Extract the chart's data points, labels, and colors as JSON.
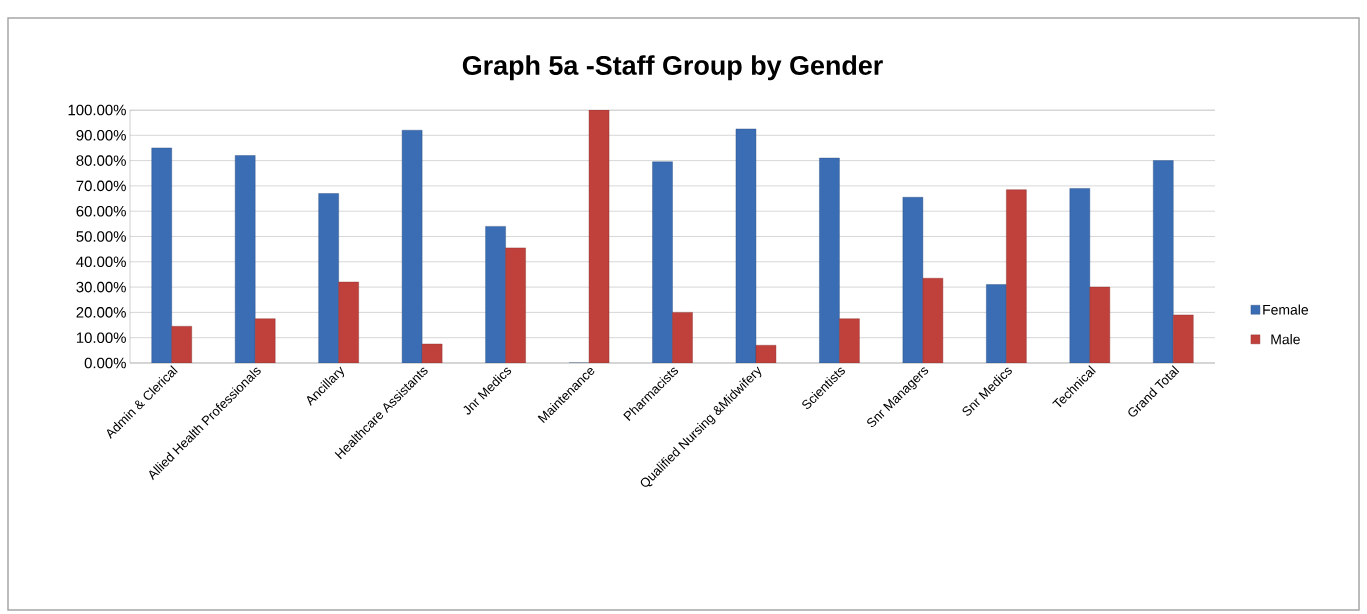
{
  "chart_data": {
    "type": "bar",
    "title": "Graph 5a -Staff Group by Gender",
    "categories": [
      "Admin & Clerical",
      "Allied Health Professionals",
      "Ancillary",
      "Healthcare Assistants",
      "Jnr Medics",
      "Maintenance",
      "Pharmacists",
      "Qualified Nursing &Midwifery",
      "Scientists",
      "Snr Managers",
      "Snr Medics",
      "Technical",
      "Grand Total"
    ],
    "series": [
      {
        "name": "Female",
        "color": "#3a6db4",
        "values": [
          85,
          82,
          67,
          92,
          54,
          0,
          79.5,
          92.5,
          81,
          65.5,
          31,
          69,
          80
        ]
      },
      {
        "name": "Male",
        "color": "#c0403c",
        "values": [
          14.5,
          17.5,
          32,
          7.5,
          45.5,
          100,
          20,
          7,
          17.5,
          33.5,
          68.5,
          30,
          19
        ]
      }
    ],
    "ylim": [
      0,
      100
    ],
    "yticks": [
      {
        "value": 0,
        "label": "0.00%"
      },
      {
        "value": 10,
        "label": "10.00%"
      },
      {
        "value": 20,
        "label": "20.00%"
      },
      {
        "value": 30,
        "label": "30.00%"
      },
      {
        "value": 40,
        "label": "40.00%"
      },
      {
        "value": 50,
        "label": "50.00%"
      },
      {
        "value": 60,
        "label": "60.00%"
      },
      {
        "value": 70,
        "label": "70.00%"
      },
      {
        "value": 80,
        "label": "80.00%"
      },
      {
        "value": 90,
        "label": "90.00%"
      },
      {
        "value": 100,
        "label": "100.00%"
      }
    ],
    "grid": "y",
    "legend": "right"
  }
}
